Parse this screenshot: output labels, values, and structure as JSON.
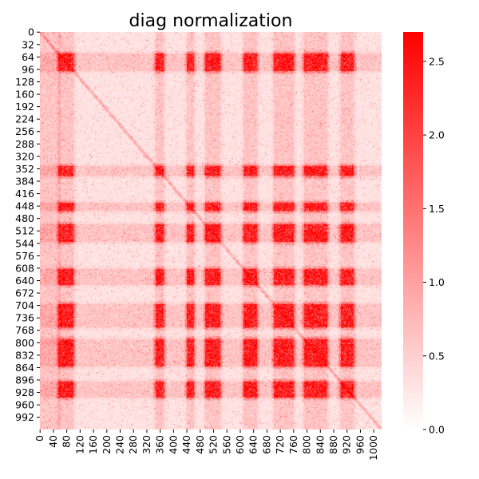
{
  "chart_data": {
    "type": "heatmap",
    "title": "diag normalization",
    "xlabel": "",
    "ylabel": "",
    "matrix_size": 1024,
    "x_tick_labels": [
      "0",
      "40",
      "80",
      "120",
      "160",
      "200",
      "240",
      "280",
      "320",
      "360",
      "400",
      "440",
      "480",
      "520",
      "560",
      "600",
      "640",
      "680",
      "720",
      "760",
      "800",
      "840",
      "880",
      "920",
      "960",
      "1000"
    ],
    "y_tick_labels": [
      "0",
      "32",
      "64",
      "96",
      "128",
      "160",
      "192",
      "224",
      "256",
      "288",
      "320",
      "352",
      "384",
      "416",
      "448",
      "480",
      "512",
      "544",
      "576",
      "608",
      "640",
      "672",
      "704",
      "736",
      "768",
      "800",
      "832",
      "864",
      "896",
      "928",
      "960",
      "992"
    ],
    "colorbar": {
      "min": 0.0,
      "max": 2.7,
      "tick_values": [
        0.0,
        0.5,
        1.0,
        1.5,
        2.0,
        2.5
      ],
      "tick_labels": [
        "0.0",
        "0.5",
        "1.0",
        "1.5",
        "2.0",
        "2.5"
      ],
      "color_low": "#ffffff",
      "color_high": "#ff0000"
    },
    "hot_bands_index_ranges": [
      [
        55,
        100
      ],
      [
        345,
        370
      ],
      [
        440,
        460
      ],
      [
        495,
        540
      ],
      [
        610,
        650
      ],
      [
        700,
        760
      ],
      [
        790,
        860
      ],
      [
        900,
        940
      ]
    ],
    "grid": false
  }
}
